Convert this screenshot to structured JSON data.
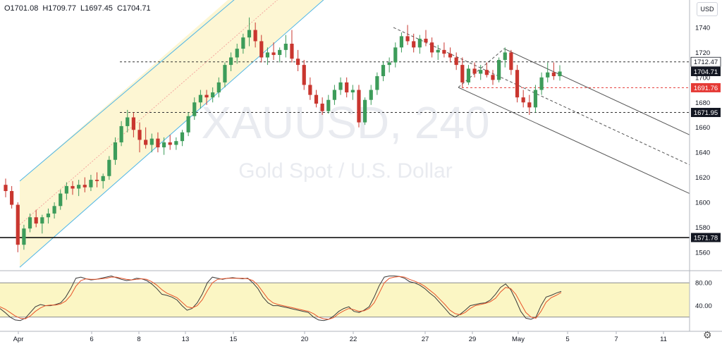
{
  "header": {
    "open": "O1701.08",
    "high": "H1709.77",
    "low": "L1697.45",
    "close": "C1704.71",
    "currency_button": "USD"
  },
  "watermark": {
    "symbol": "XAUUSD, 240",
    "description": "Gold Spot / U.S. Dollar"
  },
  "colors": {
    "up": "#3d9c5a",
    "down": "#c9362f",
    "channel_fill": "#fdf6d3",
    "channel_line": "#4fb6e6",
    "osc_fill": "#fbf6c4",
    "osc_k": "#3a3a3a",
    "osc_d": "#e8542a",
    "price_label": "#131722",
    "red_label": "#e53935"
  },
  "chart_data": [
    {
      "type": "candlestick",
      "title": "",
      "y_axis": {
        "ticks": [
          1560,
          1580,
          1600,
          1620,
          1640,
          1660,
          1680,
          1700,
          1720,
          1740
        ],
        "range": [
          1552,
          1762
        ]
      },
      "x_axis": {
        "ticks": [
          "Apr",
          "6",
          "8",
          "13",
          "15",
          "20",
          "22",
          "27",
          "29",
          "May",
          "5",
          "7",
          "11"
        ]
      },
      "candles": [
        [
          1614,
          1619,
          1604,
          1609
        ],
        [
          1609,
          1613,
          1595,
          1598
        ],
        [
          1598,
          1600,
          1560,
          1566
        ],
        [
          1566,
          1582,
          1562,
          1579
        ],
        [
          1579,
          1591,
          1576,
          1588
        ],
        [
          1588,
          1594,
          1580,
          1583
        ],
        [
          1583,
          1590,
          1575,
          1588
        ],
        [
          1588,
          1595,
          1583,
          1591
        ],
        [
          1591,
          1600,
          1587,
          1597
        ],
        [
          1597,
          1610,
          1594,
          1607
        ],
        [
          1607,
          1616,
          1602,
          1613
        ],
        [
          1613,
          1617,
          1606,
          1611
        ],
        [
          1611,
          1618,
          1605,
          1614
        ],
        [
          1614,
          1620,
          1608,
          1612
        ],
        [
          1612,
          1622,
          1609,
          1618
        ],
        [
          1618,
          1624,
          1612,
          1617
        ],
        [
          1617,
          1623,
          1611,
          1621
        ],
        [
          1621,
          1637,
          1618,
          1634
        ],
        [
          1634,
          1652,
          1630,
          1648
        ],
        [
          1648,
          1665,
          1645,
          1661
        ],
        [
          1661,
          1674,
          1656,
          1668
        ],
        [
          1668,
          1672,
          1652,
          1658
        ],
        [
          1658,
          1664,
          1640,
          1650
        ],
        [
          1650,
          1660,
          1643,
          1646
        ],
        [
          1646,
          1655,
          1640,
          1651
        ],
        [
          1651,
          1656,
          1640,
          1644
        ],
        [
          1644,
          1652,
          1638,
          1648
        ],
        [
          1648,
          1654,
          1642,
          1646
        ],
        [
          1646,
          1652,
          1642,
          1649
        ],
        [
          1649,
          1658,
          1645,
          1656
        ],
        [
          1656,
          1672,
          1653,
          1669
        ],
        [
          1669,
          1684,
          1666,
          1680
        ],
        [
          1680,
          1690,
          1675,
          1686
        ],
        [
          1686,
          1690,
          1678,
          1684
        ],
        [
          1684,
          1692,
          1680,
          1688
        ],
        [
          1688,
          1700,
          1684,
          1696
        ],
        [
          1696,
          1712,
          1692,
          1710
        ],
        [
          1710,
          1720,
          1705,
          1716
        ],
        [
          1716,
          1727,
          1711,
          1723
        ],
        [
          1723,
          1735,
          1719,
          1732
        ],
        [
          1732,
          1748,
          1725,
          1738
        ],
        [
          1738,
          1744,
          1724,
          1729
        ],
        [
          1729,
          1734,
          1712,
          1716
        ],
        [
          1716,
          1724,
          1710,
          1720
        ],
        [
          1720,
          1728,
          1714,
          1718
        ],
        [
          1718,
          1724,
          1712,
          1722
        ],
        [
          1722,
          1734,
          1716,
          1727
        ],
        [
          1727,
          1738,
          1712,
          1715
        ],
        [
          1715,
          1722,
          1705,
          1710
        ],
        [
          1710,
          1714,
          1690,
          1694
        ],
        [
          1694,
          1700,
          1682,
          1686
        ],
        [
          1686,
          1690,
          1676,
          1679
        ],
        [
          1679,
          1684,
          1670,
          1673
        ],
        [
          1673,
          1686,
          1671,
          1682
        ],
        [
          1682,
          1694,
          1678,
          1690
        ],
        [
          1690,
          1700,
          1686,
          1696
        ],
        [
          1696,
          1700,
          1684,
          1688
        ],
        [
          1688,
          1694,
          1682,
          1690
        ],
        [
          1690,
          1694,
          1660,
          1664
        ],
        [
          1664,
          1684,
          1662,
          1682
        ],
        [
          1682,
          1694,
          1678,
          1690
        ],
        [
          1690,
          1704,
          1686,
          1701
        ],
        [
          1701,
          1713,
          1697,
          1710
        ],
        [
          1710,
          1716,
          1704,
          1712
        ],
        [
          1712,
          1728,
          1708,
          1724
        ],
        [
          1724,
          1736,
          1720,
          1733
        ],
        [
          1733,
          1742,
          1726,
          1729
        ],
        [
          1729,
          1735,
          1720,
          1724
        ],
        [
          1724,
          1734,
          1719,
          1731
        ],
        [
          1731,
          1738,
          1725,
          1728
        ],
        [
          1728,
          1732,
          1716,
          1720
        ],
        [
          1720,
          1726,
          1714,
          1722
        ],
        [
          1722,
          1728,
          1716,
          1719
        ],
        [
          1719,
          1724,
          1712,
          1716
        ],
        [
          1716,
          1720,
          1706,
          1710
        ],
        [
          1710,
          1716,
          1692,
          1696
        ],
        [
          1696,
          1710,
          1694,
          1707
        ],
        [
          1707,
          1712,
          1700,
          1703
        ],
        [
          1703,
          1710,
          1698,
          1706
        ],
        [
          1706,
          1712,
          1700,
          1702
        ],
        [
          1702,
          1706,
          1694,
          1698
        ],
        [
          1698,
          1716,
          1696,
          1714
        ],
        [
          1714,
          1724,
          1708,
          1720
        ],
        [
          1720,
          1722,
          1702,
          1706
        ],
        [
          1706,
          1710,
          1680,
          1684
        ],
        [
          1684,
          1690,
          1676,
          1680
        ],
        [
          1680,
          1686,
          1670,
          1676
        ],
        [
          1676,
          1694,
          1672,
          1690
        ],
        [
          1690,
          1704,
          1686,
          1700
        ],
        [
          1700,
          1712,
          1696,
          1704
        ],
        [
          1704,
          1712,
          1698,
          1701
        ],
        [
          1701,
          1709.77,
          1697.45,
          1704.71
        ]
      ],
      "horizontal_levels": [
        {
          "price": "1712.47",
          "style": "dashed",
          "label_style": "light"
        },
        {
          "price": "1704.71",
          "style": "none",
          "label_style": "dark"
        },
        {
          "price": "1691.76",
          "style": "dashed-red",
          "label_style": "red"
        },
        {
          "price": "1671.95",
          "style": "dashed",
          "label_style": "dark"
        },
        {
          "price": "1571.78",
          "style": "solid",
          "label_style": "dark"
        }
      ]
    },
    {
      "type": "line",
      "title": "",
      "y_axis": {
        "ticks": [
          40.0,
          80.0
        ],
        "range": [
          0,
          100
        ],
        "band": [
          20,
          80
        ]
      },
      "series": [
        {
          "values": [
            35,
            28,
            20,
            15,
            14,
            18,
            28,
            38,
            42,
            40,
            40,
            42,
            45,
            55,
            70,
            88,
            90,
            87,
            85,
            86,
            88,
            90,
            92,
            89,
            86,
            84,
            85,
            88,
            87,
            84,
            78,
            70,
            60,
            58,
            55,
            50,
            40,
            32,
            35,
            45,
            60,
            80,
            90,
            88,
            86,
            88,
            89,
            88,
            87,
            88,
            80,
            70,
            55,
            45,
            40,
            40,
            38,
            36,
            34,
            32,
            30,
            28,
            20,
            15,
            14,
            16,
            22,
            30,
            35,
            38,
            30,
            28,
            32,
            38,
            55,
            75,
            90,
            92,
            92,
            91,
            88,
            82,
            80,
            76,
            70,
            62,
            55,
            45,
            35,
            25,
            20,
            25,
            32,
            40,
            42,
            44,
            45,
            50,
            60,
            72,
            78,
            68,
            50,
            30,
            18,
            16,
            20,
            40,
            55,
            58,
            62,
            65
          ]
        },
        {
          "values": [
            38,
            34,
            28,
            22,
            18,
            17,
            22,
            30,
            36,
            40,
            41,
            41,
            43,
            48,
            58,
            74,
            84,
            87,
            86,
            86,
            87,
            88,
            90,
            90,
            88,
            86,
            85,
            86,
            87,
            86,
            82,
            76,
            68,
            62,
            58,
            54,
            46,
            38,
            36,
            40,
            50,
            66,
            80,
            86,
            87,
            88,
            88,
            88,
            88,
            87,
            84,
            76,
            64,
            52,
            45,
            42,
            40,
            38,
            36,
            34,
            32,
            30,
            26,
            20,
            17,
            16,
            19,
            26,
            31,
            35,
            33,
            30,
            31,
            35,
            45,
            62,
            80,
            88,
            90,
            91,
            90,
            86,
            83,
            79,
            74,
            67,
            60,
            51,
            42,
            32,
            26,
            24,
            28,
            35,
            40,
            42,
            44,
            47,
            53,
            64,
            72,
            70,
            60,
            44,
            28,
            20,
            18,
            30,
            46,
            54,
            58,
            63
          ]
        }
      ]
    }
  ]
}
